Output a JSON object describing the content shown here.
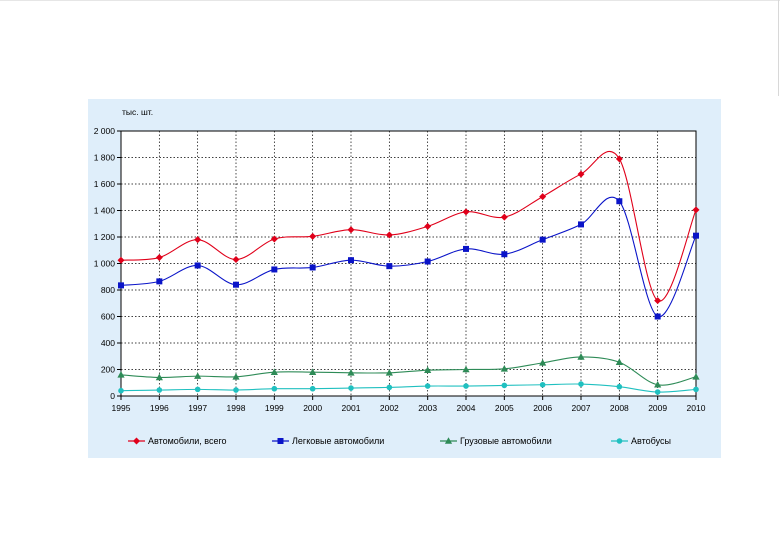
{
  "chart_data": {
    "type": "line",
    "unit_label": "тыс. шт.",
    "x": [
      "1995",
      "1996",
      "1997",
      "1998",
      "1999",
      "2000",
      "2001",
      "2002",
      "2003",
      "2004",
      "2005",
      "2006",
      "2007",
      "2008",
      "2009",
      "2010"
    ],
    "ylim": [
      0,
      2000
    ],
    "yticks": [
      "0",
      "200",
      "400",
      "600",
      "800",
      "1 000",
      "1 200",
      "1 400",
      "1 600",
      "1 800",
      "2 000"
    ],
    "grid": true,
    "legend_position": "bottom",
    "series": [
      {
        "name": "Автомобили, всего",
        "color": "#e0001a",
        "marker": "diamond",
        "values": [
          1025,
          1045,
          1180,
          1030,
          1185,
          1205,
          1255,
          1215,
          1280,
          1390,
          1350,
          1505,
          1675,
          1790,
          720,
          1405
        ]
      },
      {
        "name": "Легковые автомобили",
        "color": "#0a14c8",
        "marker": "square",
        "values": [
          835,
          865,
          985,
          840,
          955,
          970,
          1025,
          980,
          1015,
          1110,
          1070,
          1180,
          1295,
          1470,
          600,
          1210
        ]
      },
      {
        "name": "Грузовые автомобили",
        "color": "#2e8b57",
        "marker": "triangle",
        "values": [
          160,
          140,
          150,
          145,
          180,
          180,
          175,
          175,
          195,
          200,
          205,
          250,
          295,
          255,
          85,
          145
        ]
      },
      {
        "name": "Автобусы",
        "color": "#20c0c0",
        "marker": "circle",
        "values": [
          40,
          45,
          50,
          45,
          55,
          55,
          60,
          65,
          75,
          75,
          80,
          85,
          90,
          70,
          30,
          50
        ]
      }
    ]
  }
}
